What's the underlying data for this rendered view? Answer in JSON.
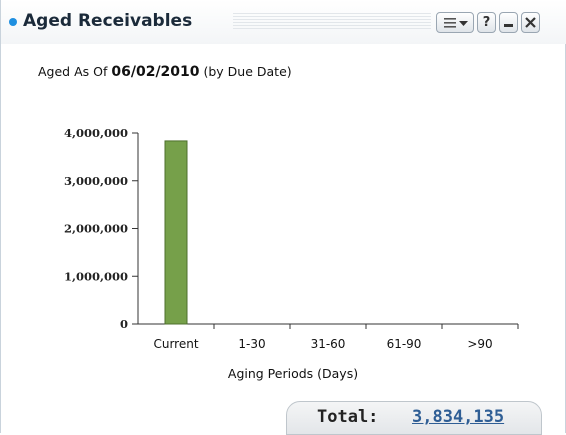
{
  "widget": {
    "title": "Aged Receivables",
    "subtitle_prefix": "Aged As Of",
    "as_of_date": "06/02/2010",
    "subtitle_suffix": "(by Due Date)",
    "buttons": {
      "help_label": "?"
    },
    "total_label": "Total:",
    "total_value": "3,834,135",
    "colors": {
      "bar": "#76a04a",
      "bar_border": "#4d6f2c",
      "accent_dot": "#1f8fe0",
      "total_link": "#2f5e95"
    }
  },
  "chart_data": {
    "type": "bar",
    "categories": [
      "Current",
      "1-30",
      "31-60",
      "61-90",
      ">90"
    ],
    "values": [
      3834135,
      0,
      0,
      0,
      0
    ],
    "title": "",
    "xlabel": "Aging Periods (Days)",
    "ylabel": "",
    "ylim": [
      0,
      4000000
    ],
    "yticks": [
      0,
      1000000,
      2000000,
      3000000,
      4000000
    ],
    "ytick_labels": [
      "0",
      "1,000,000",
      "2,000,000",
      "3,000,000",
      "4,000,000"
    ],
    "grid": false,
    "legend": "none"
  }
}
